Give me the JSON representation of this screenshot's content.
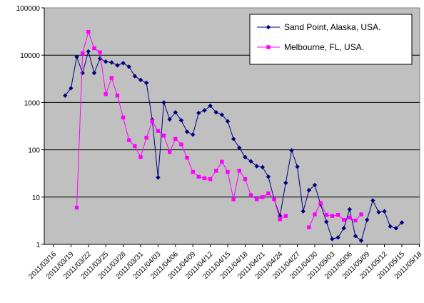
{
  "chart_data": {
    "type": "line",
    "yscale": "log",
    "ylim": [
      1,
      100000
    ],
    "yticks": [
      "1",
      "10",
      "100",
      "1000",
      "10000",
      "100000"
    ],
    "x_tick_labels": [
      "2011/03/16",
      "2011/03/19",
      "2011/03/22",
      "2011/03/25",
      "2011/03/28",
      "2011/03/31",
      "2011/04/03",
      "2011/04/06",
      "2011/04/09",
      "2011/04/12",
      "2011/04/15",
      "2011/04/18",
      "2011/04/21",
      "2011/04/24",
      "2011/04/27",
      "2011/04/30",
      "2011/05/03",
      "2011/05/06",
      "2011/05/09",
      "2011/05/12",
      "2011/05/15",
      "2011/05/18"
    ],
    "grid": "horizontal",
    "legend_position": "top-right",
    "plot_background": "#c0c0c0",
    "series": [
      {
        "name": "Sand Point, Alaska, USA.",
        "color": "#000080",
        "marker": "diamond",
        "points": [
          [
            "2011/03/18",
            1400
          ],
          [
            "2011/03/19",
            2000
          ],
          [
            "2011/03/20",
            9200
          ],
          [
            "2011/03/21",
            4200
          ],
          [
            "2011/03/22",
            12000
          ],
          [
            "2011/03/23",
            4200
          ],
          [
            "2011/03/24",
            8500
          ],
          [
            "2011/03/25",
            7300
          ],
          [
            "2011/03/26",
            7000
          ],
          [
            "2011/03/27",
            6100
          ],
          [
            "2011/03/28",
            6800
          ],
          [
            "2011/03/29",
            5700
          ],
          [
            "2011/03/30",
            3600
          ],
          [
            "2011/03/31",
            3000
          ],
          [
            "2011/04/01",
            2600
          ],
          [
            "2011/04/02",
            430
          ],
          [
            "2011/04/03",
            26
          ],
          [
            "2011/04/04",
            1000
          ],
          [
            "2011/04/05",
            440
          ],
          [
            "2011/04/06",
            620
          ],
          [
            "2011/04/07",
            420
          ],
          [
            "2011/04/08",
            240
          ],
          [
            "2011/04/09",
            210
          ],
          [
            "2011/04/10",
            600
          ],
          [
            "2011/04/11",
            680
          ],
          [
            "2011/04/12",
            850
          ],
          [
            "2011/04/13",
            620
          ],
          [
            "2011/04/14",
            550
          ],
          [
            "2011/04/15",
            400
          ],
          [
            "2011/04/16",
            170
          ],
          [
            "2011/04/17",
            110
          ],
          [
            "2011/04/18",
            70
          ],
          [
            "2011/04/19",
            57
          ],
          [
            "2011/04/20",
            45
          ],
          [
            "2011/04/21",
            43
          ],
          [
            "2011/04/22",
            27
          ],
          [
            "2011/04/23",
            9
          ],
          [
            "2011/04/24",
            4
          ],
          [
            "2011/04/25",
            20
          ],
          [
            "2011/04/26",
            97
          ],
          [
            "2011/04/27",
            44
          ],
          [
            "2011/04/28",
            5
          ],
          [
            "2011/04/29",
            14
          ],
          [
            "2011/04/30",
            18
          ],
          [
            "2011/05/01",
            7
          ],
          [
            "2011/05/02",
            3
          ],
          [
            "2011/05/03",
            1.3
          ],
          [
            "2011/05/04",
            1.4
          ],
          [
            "2011/05/05",
            2.2
          ],
          [
            "2011/05/06",
            5.5
          ],
          [
            "2011/05/07",
            1.5
          ],
          [
            "2011/05/08",
            1.2
          ],
          [
            "2011/05/09",
            3.3
          ],
          [
            "2011/05/10",
            8.5
          ],
          [
            "2011/05/11",
            4.8
          ],
          [
            "2011/05/12",
            5
          ],
          [
            "2011/05/13",
            2.4
          ],
          [
            "2011/05/14",
            2.2
          ],
          [
            "2011/05/15",
            2.9
          ]
        ]
      },
      {
        "name": "Melbourne, FL, USA.",
        "color": "#ff00ff",
        "marker": "square",
        "points": [
          [
            "2011/03/20",
            6
          ],
          [
            "2011/03/21",
            11000
          ],
          [
            "2011/03/22",
            31000
          ],
          [
            "2011/03/23",
            14000
          ],
          [
            "2011/03/24",
            11500
          ],
          [
            "2011/03/25",
            1500
          ],
          [
            "2011/03/26",
            3300
          ],
          [
            "2011/03/27",
            1400
          ],
          [
            "2011/03/28",
            480
          ],
          [
            "2011/03/29",
            160
          ],
          [
            "2011/03/30",
            120
          ],
          [
            "2011/03/31",
            70
          ],
          [
            "2011/04/01",
            180
          ],
          [
            "2011/04/02",
            400
          ],
          [
            "2011/04/03",
            250
          ],
          [
            "2011/04/04",
            200
          ],
          [
            "2011/04/05",
            90
          ],
          [
            "2011/04/06",
            170
          ],
          [
            "2011/04/07",
            130
          ],
          [
            "2011/04/08",
            68
          ],
          [
            "2011/04/09",
            34
          ],
          [
            "2011/04/10",
            27
          ],
          [
            "2011/04/11",
            25
          ],
          [
            "2011/04/12",
            24
          ],
          [
            "2011/04/13",
            36
          ],
          [
            "2011/04/14",
            56
          ],
          [
            "2011/04/15",
            34
          ],
          [
            "2011/04/16",
            9
          ],
          [
            "2011/04/17",
            36
          ],
          [
            "2011/04/18",
            24
          ],
          [
            "2011/04/19",
            11
          ],
          [
            "2011/04/20",
            9
          ],
          [
            "2011/04/21",
            10
          ],
          [
            "2011/04/22",
            12
          ],
          [
            "2011/04/23",
            9
          ],
          [
            "2011/04/24",
            3.4
          ],
          [
            "2011/04/25",
            4
          ],
          [
            "2011/04/29",
            2.3
          ],
          [
            "2011/04/30",
            4.3
          ],
          [
            "2011/05/01",
            7.5
          ],
          [
            "2011/05/02",
            4.2
          ],
          [
            "2011/05/03",
            4
          ],
          [
            "2011/05/04",
            4.2
          ],
          [
            "2011/05/05",
            3.3
          ],
          [
            "2011/05/06",
            3.7
          ],
          [
            "2011/05/07",
            3.2
          ],
          [
            "2011/05/08",
            4.3
          ]
        ]
      }
    ]
  }
}
